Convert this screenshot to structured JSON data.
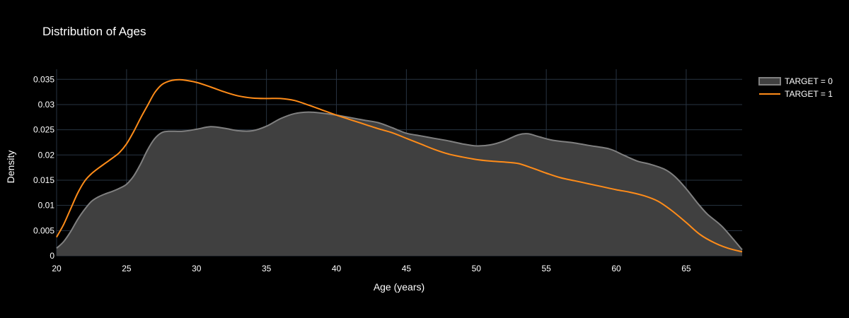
{
  "chart_data": {
    "type": "area",
    "title": "Distribution of Ages",
    "xlabel": "Age (years)",
    "ylabel": "Density",
    "xlim": [
      20,
      69
    ],
    "ylim": [
      0,
      0.037
    ],
    "x_ticks": [
      20,
      25,
      30,
      35,
      40,
      45,
      50,
      55,
      60,
      65
    ],
    "x_tick_labels": [
      "20",
      "25",
      "30",
      "35",
      "40",
      "45",
      "50",
      "55",
      "60",
      "65"
    ],
    "y_ticks": [
      0,
      0.005,
      0.01,
      0.015,
      0.02,
      0.025,
      0.03,
      0.035
    ],
    "y_tick_labels": [
      "0",
      "0.005",
      "0.01",
      "0.015",
      "0.02",
      "0.025",
      "0.03",
      "0.035"
    ],
    "grid": true,
    "legend_position": "top-right",
    "series": [
      {
        "name": "TARGET = 0",
        "color": "#808080",
        "fill": "#404040",
        "filled": true,
        "points": [
          [
            20,
            0.0015
          ],
          [
            20.5,
            0.0028
          ],
          [
            21,
            0.0048
          ],
          [
            21.5,
            0.0072
          ],
          [
            22,
            0.0092
          ],
          [
            22.5,
            0.0108
          ],
          [
            23,
            0.0117
          ],
          [
            23.5,
            0.0123
          ],
          [
            24,
            0.0128
          ],
          [
            24.5,
            0.0134
          ],
          [
            25,
            0.0142
          ],
          [
            25.5,
            0.0158
          ],
          [
            26,
            0.0182
          ],
          [
            26.5,
            0.021
          ],
          [
            27,
            0.0232
          ],
          [
            27.5,
            0.0244
          ],
          [
            28,
            0.0247
          ],
          [
            29,
            0.0247
          ],
          [
            30,
            0.0251
          ],
          [
            31,
            0.0256
          ],
          [
            32,
            0.0253
          ],
          [
            33,
            0.0248
          ],
          [
            34,
            0.0248
          ],
          [
            35,
            0.0257
          ],
          [
            36,
            0.0272
          ],
          [
            37,
            0.0282
          ],
          [
            38,
            0.0285
          ],
          [
            39,
            0.0283
          ],
          [
            40,
            0.0279
          ],
          [
            41,
            0.0274
          ],
          [
            42,
            0.0269
          ],
          [
            43,
            0.0264
          ],
          [
            44,
            0.0254
          ],
          [
            45,
            0.0243
          ],
          [
            46,
            0.0238
          ],
          [
            47,
            0.0233
          ],
          [
            48,
            0.0228
          ],
          [
            49,
            0.0222
          ],
          [
            50,
            0.0218
          ],
          [
            51,
            0.022
          ],
          [
            52,
            0.0228
          ],
          [
            53,
            0.024
          ],
          [
            53.7,
            0.0242
          ],
          [
            54.5,
            0.0236
          ],
          [
            55.5,
            0.0229
          ],
          [
            57,
            0.0224
          ],
          [
            58,
            0.0219
          ],
          [
            59.5,
            0.0212
          ],
          [
            60.5,
            0.02
          ],
          [
            61.5,
            0.0188
          ],
          [
            62.5,
            0.0181
          ],
          [
            63.5,
            0.0171
          ],
          [
            64.2,
            0.0157
          ],
          [
            65,
            0.0133
          ],
          [
            65.8,
            0.0105
          ],
          [
            66.5,
            0.0083
          ],
          [
            67.5,
            0.006
          ],
          [
            68.3,
            0.0035
          ],
          [
            69,
            0.0012
          ]
        ]
      },
      {
        "name": "TARGET = 1",
        "color": "#ff8c19",
        "filled": false,
        "points": [
          [
            20,
            0.0037
          ],
          [
            20.5,
            0.0062
          ],
          [
            21,
            0.0093
          ],
          [
            21.5,
            0.0124
          ],
          [
            22,
            0.0148
          ],
          [
            22.5,
            0.0163
          ],
          [
            23,
            0.0174
          ],
          [
            23.5,
            0.0184
          ],
          [
            24,
            0.0194
          ],
          [
            24.5,
            0.0205
          ],
          [
            25,
            0.0222
          ],
          [
            25.5,
            0.0246
          ],
          [
            26,
            0.0273
          ],
          [
            26.5,
            0.0298
          ],
          [
            27,
            0.0323
          ],
          [
            27.5,
            0.0339
          ],
          [
            28,
            0.0346
          ],
          [
            28.5,
            0.0349
          ],
          [
            29,
            0.0349
          ],
          [
            30,
            0.0344
          ],
          [
            31,
            0.0335
          ],
          [
            32,
            0.0325
          ],
          [
            33,
            0.0317
          ],
          [
            34,
            0.0313
          ],
          [
            35,
            0.0312
          ],
          [
            36,
            0.0312
          ],
          [
            37,
            0.0308
          ],
          [
            38,
            0.0299
          ],
          [
            39,
            0.0289
          ],
          [
            40,
            0.0279
          ],
          [
            41,
            0.027
          ],
          [
            42,
            0.0261
          ],
          [
            43,
            0.0252
          ],
          [
            44,
            0.0244
          ],
          [
            45,
            0.0233
          ],
          [
            46,
            0.0222
          ],
          [
            47,
            0.0211
          ],
          [
            48,
            0.0202
          ],
          [
            49,
            0.0196
          ],
          [
            50,
            0.0191
          ],
          [
            51,
            0.0188
          ],
          [
            52,
            0.0186
          ],
          [
            53,
            0.0183
          ],
          [
            54,
            0.0174
          ],
          [
            55,
            0.0164
          ],
          [
            56,
            0.0155
          ],
          [
            57,
            0.0149
          ],
          [
            58,
            0.0143
          ],
          [
            59,
            0.0137
          ],
          [
            60,
            0.0131
          ],
          [
            61,
            0.0126
          ],
          [
            62,
            0.0119
          ],
          [
            63,
            0.0108
          ],
          [
            64,
            0.0089
          ],
          [
            65,
            0.0066
          ],
          [
            66,
            0.0042
          ],
          [
            67,
            0.0026
          ],
          [
            68,
            0.0015
          ],
          [
            69,
            0.0008
          ]
        ]
      }
    ]
  }
}
